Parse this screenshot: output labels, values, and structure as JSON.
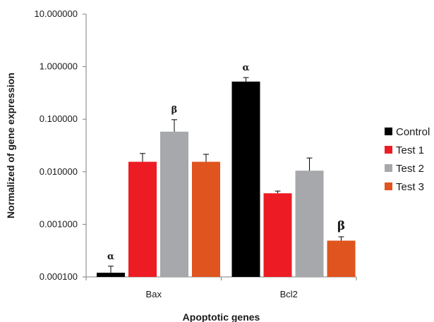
{
  "chart_data": {
    "type": "bar",
    "title": "",
    "xlabel": "Apoptotic genes",
    "ylabel": "Normalized of gene expression",
    "yscale": "log",
    "ylim": [
      0.0001,
      10
    ],
    "y_ticks": [
      "0.000100",
      "0.001000",
      "0.010000",
      "0.100000",
      "1.000000",
      "10.000000"
    ],
    "grid": false,
    "legend_position": "right",
    "categories": [
      "Bax",
      "Bcl2"
    ],
    "series": [
      {
        "name": "Control",
        "color": "#000000",
        "values": [
          0.00012,
          0.52
        ],
        "error": [
          4e-05,
          0.1
        ]
      },
      {
        "name": "Test 1",
        "color": "#ed1c24",
        "values": [
          0.0155,
          0.0039
        ],
        "error": [
          0.0068,
          0.0004
        ]
      },
      {
        "name": "Test 2",
        "color": "#a6a8ab",
        "values": [
          0.058,
          0.0105
        ],
        "error": [
          0.04,
          0.0078
        ]
      },
      {
        "name": "Test 3",
        "color": "#e0541f",
        "values": [
          0.0155,
          0.00049
        ],
        "error": [
          0.006,
          9e-05
        ]
      }
    ],
    "annotations": [
      {
        "category": "Bax",
        "series": "Control",
        "text": "α"
      },
      {
        "category": "Bax",
        "series": "Test 2",
        "text": "β"
      },
      {
        "category": "Bcl2",
        "series": "Control",
        "text": "α"
      },
      {
        "category": "Bcl2",
        "series": "Test 3",
        "text": "β"
      }
    ]
  }
}
